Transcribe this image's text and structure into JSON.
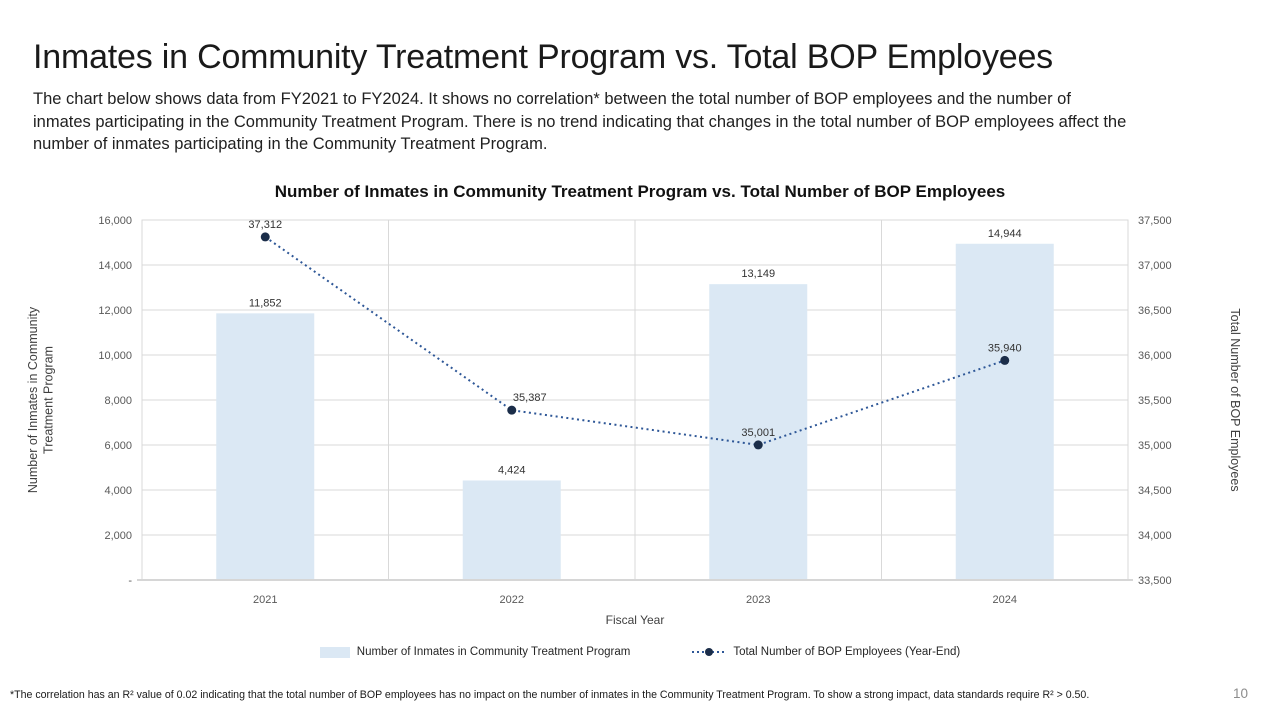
{
  "slide": {
    "title": "Inmates in Community Treatment Program vs. Total BOP Employees",
    "description": "The chart below shows data from FY2021 to FY2024. It shows no correlation* between the total number of BOP employees and the number of inmates participating in the Community Treatment Program. There is no trend indicating that changes in the total number of BOP employees affect the number of inmates participating in the Community Treatment Program.",
    "footnote": "*The correlation has an R² value of 0.02 indicating that the total number of BOP employees has no impact on the number of inmates in the Community Treatment Program. To show a strong impact, data standards require  R² > 0.50.",
    "page_number": "10"
  },
  "chart_data": {
    "type": "bar",
    "combo": "bar+line",
    "title": "Number of Inmates in Community Treatment Program vs. Total Number of BOP Employees",
    "categories": [
      "2021",
      "2022",
      "2023",
      "2024"
    ],
    "series": [
      {
        "name": "Number of Inmates in Community Treatment Program",
        "type": "bar",
        "axis": "left",
        "values": [
          11852,
          4424,
          13149,
          14944
        ],
        "labels": [
          "11,852",
          "4,424",
          "13,149",
          "14,944"
        ],
        "color": "#dbe8f4"
      },
      {
        "name": "Total Number of BOP Employees (Year-End)",
        "type": "line",
        "axis": "right",
        "line_style": "dotted",
        "values": [
          37312,
          35387,
          35001,
          35940
        ],
        "labels": [
          "37,312",
          "35,387",
          "35,001",
          "35,940"
        ],
        "color": "#2e5797",
        "marker_color": "#1b2d49"
      }
    ],
    "xlabel": "Fiscal Year",
    "ylabel_left": "Number of Inmates in  Community Treatment Program",
    "ylabel_left_lines": [
      "Number of Inmates in  Community",
      "Treatment Program"
    ],
    "ylabel_right": "Total Number of BOP Employees",
    "left_axis": {
      "min": 0,
      "max": 16000,
      "step": 2000,
      "tick_labels": [
        "-",
        "2,000",
        "4,000",
        "6,000",
        "8,000",
        "10,000",
        "12,000",
        "14,000",
        "16,000"
      ]
    },
    "right_axis": {
      "min": 33500,
      "max": 37500,
      "step": 500,
      "tick_labels": [
        "33,500",
        "34,000",
        "34,500",
        "35,000",
        "35,500",
        "36,000",
        "36,500",
        "37,000",
        "37,500"
      ]
    },
    "grid": true,
    "legend_position": "bottom"
  },
  "colors": {
    "grid": "#d9d9d9",
    "plot_border": "#d9d9d9",
    "axis_line": "#d6d6d6",
    "tick_text": "#595959",
    "axis_title_text": "#404040",
    "data_label_text": "#333333"
  }
}
